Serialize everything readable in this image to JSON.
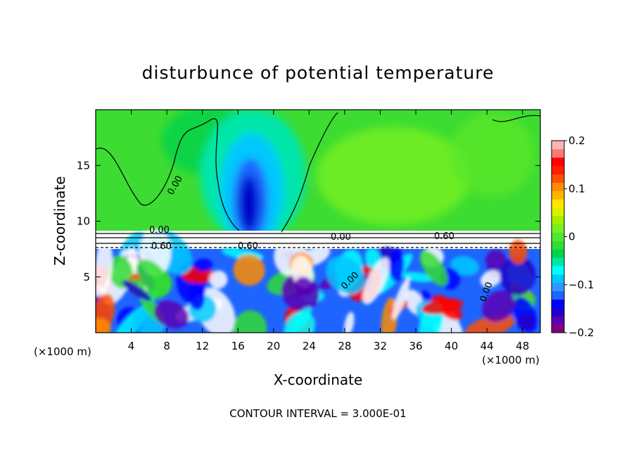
{
  "chart_data": {
    "type": "heatmap",
    "title": "disturbunce of potential temperature",
    "xlabel": "X-coordinate",
    "ylabel": "Z-coordinate",
    "x_unit_left": "(×1000 m)",
    "x_unit_right": "(×1000 m)",
    "footer": "CONTOUR INTERVAL = 3.000E-01",
    "xlim": [
      0,
      50
    ],
    "ylim": [
      0,
      20
    ],
    "x_ticks": [
      "4",
      "8",
      "12",
      "16",
      "20",
      "24",
      "28",
      "32",
      "36",
      "40",
      "44",
      "48"
    ],
    "x_tick_values": [
      4,
      8,
      12,
      16,
      20,
      24,
      28,
      32,
      36,
      40,
      44,
      48
    ],
    "y_ticks": [
      "5",
      "10",
      "15"
    ],
    "y_tick_values": [
      5,
      10,
      15
    ],
    "colorbar": {
      "range": [
        -0.2,
        0.2
      ],
      "tick_labels": [
        "0.2",
        "0.1",
        "0",
        "−0.1",
        "−0.2"
      ],
      "tick_values": [
        0.2,
        0.1,
        0,
        -0.1,
        -0.2
      ],
      "colors": [
        "#7f007f",
        "#5b00b4",
        "#1e00c8",
        "#0000ff",
        "#1e64ff",
        "#3296ff",
        "#00c8ff",
        "#00ffff",
        "#00e6aa",
        "#00d24b",
        "#32dc32",
        "#50e632",
        "#78f01e",
        "#a0f000",
        "#dcf000",
        "#ffe600",
        "#ffb400",
        "#ff8c00",
        "#ff5000",
        "#ff1e00",
        "#ff0000",
        "#ff7878",
        "#ffb4b4"
      ]
    },
    "contour_labels": [
      "0.00",
      "0.00",
      "0.00",
      "0.60",
      "0.60",
      "0.60",
      "0.00",
      "0.00"
    ],
    "colors": {
      "frame": "#000000",
      "upper_field": "#32dc32",
      "cold_core": "#0000ff",
      "warm": "#ff0000"
    }
  }
}
